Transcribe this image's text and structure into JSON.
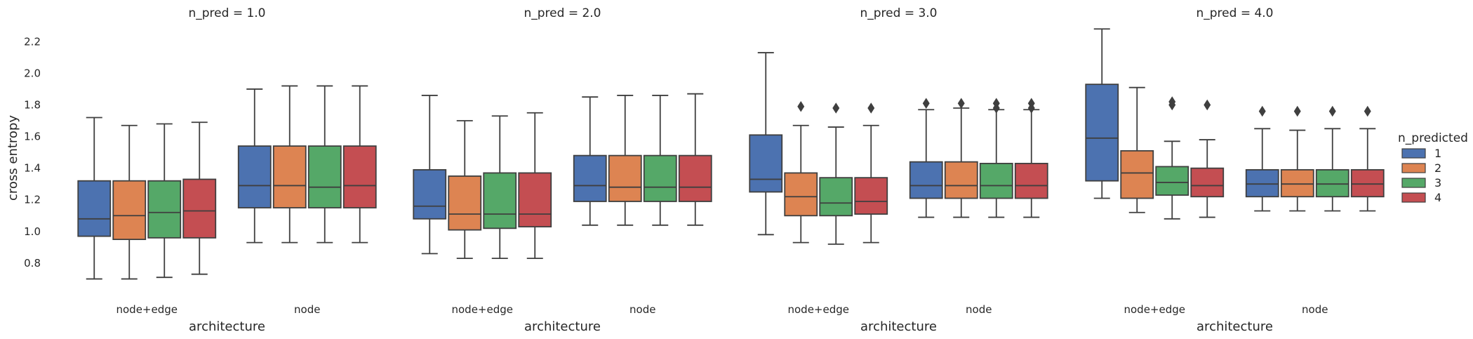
{
  "chart_data": {
    "type": "boxplot",
    "facet_label": "n_pred",
    "xlabel": "architecture",
    "ylabel": "cross entropy",
    "ylim": [
      0.6,
      2.33
    ],
    "yticks": [
      "0.8",
      "1.0",
      "1.2",
      "1.4",
      "1.6",
      "1.8",
      "2.0",
      "2.2"
    ],
    "categories": [
      "node+edge",
      "node"
    ],
    "legend": {
      "title": "n_predicted",
      "placement": "right",
      "entries": [
        {
          "label": "1",
          "color": "#4c72b0"
        },
        {
          "label": "2",
          "color": "#dd8452"
        },
        {
          "label": "3",
          "color": "#55a868"
        },
        {
          "label": "4",
          "color": "#c44e52"
        }
      ]
    },
    "panels": [
      {
        "title": "n_pred = 1.0",
        "groups": [
          {
            "category": "node+edge",
            "boxes": [
              {
                "hue": "1",
                "wmin": 0.7,
                "q1": 0.97,
                "med": 1.08,
                "q3": 1.32,
                "wmax": 1.72,
                "outliers": []
              },
              {
                "hue": "2",
                "wmin": 0.7,
                "q1": 0.95,
                "med": 1.1,
                "q3": 1.32,
                "wmax": 1.67,
                "outliers": []
              },
              {
                "hue": "3",
                "wmin": 0.71,
                "q1": 0.96,
                "med": 1.12,
                "q3": 1.32,
                "wmax": 1.68,
                "outliers": []
              },
              {
                "hue": "4",
                "wmin": 0.73,
                "q1": 0.96,
                "med": 1.13,
                "q3": 1.33,
                "wmax": 1.69,
                "outliers": []
              }
            ]
          },
          {
            "category": "node",
            "boxes": [
              {
                "hue": "1",
                "wmin": 0.93,
                "q1": 1.15,
                "med": 1.29,
                "q3": 1.54,
                "wmax": 1.9,
                "outliers": []
              },
              {
                "hue": "2",
                "wmin": 0.93,
                "q1": 1.15,
                "med": 1.29,
                "q3": 1.54,
                "wmax": 1.92,
                "outliers": []
              },
              {
                "hue": "3",
                "wmin": 0.93,
                "q1": 1.15,
                "med": 1.28,
                "q3": 1.54,
                "wmax": 1.92,
                "outliers": []
              },
              {
                "hue": "4",
                "wmin": 0.93,
                "q1": 1.15,
                "med": 1.29,
                "q3": 1.54,
                "wmax": 1.92,
                "outliers": []
              }
            ]
          }
        ]
      },
      {
        "title": "n_pred = 2.0",
        "groups": [
          {
            "category": "node+edge",
            "boxes": [
              {
                "hue": "1",
                "wmin": 0.86,
                "q1": 1.08,
                "med": 1.16,
                "q3": 1.39,
                "wmax": 1.86,
                "outliers": []
              },
              {
                "hue": "2",
                "wmin": 0.83,
                "q1": 1.01,
                "med": 1.11,
                "q3": 1.35,
                "wmax": 1.7,
                "outliers": []
              },
              {
                "hue": "3",
                "wmin": 0.83,
                "q1": 1.02,
                "med": 1.11,
                "q3": 1.37,
                "wmax": 1.73,
                "outliers": []
              },
              {
                "hue": "4",
                "wmin": 0.83,
                "q1": 1.03,
                "med": 1.11,
                "q3": 1.37,
                "wmax": 1.75,
                "outliers": []
              }
            ]
          },
          {
            "category": "node",
            "boxes": [
              {
                "hue": "1",
                "wmin": 1.04,
                "q1": 1.19,
                "med": 1.29,
                "q3": 1.48,
                "wmax": 1.85,
                "outliers": []
              },
              {
                "hue": "2",
                "wmin": 1.04,
                "q1": 1.19,
                "med": 1.28,
                "q3": 1.48,
                "wmax": 1.86,
                "outliers": []
              },
              {
                "hue": "3",
                "wmin": 1.04,
                "q1": 1.19,
                "med": 1.28,
                "q3": 1.48,
                "wmax": 1.86,
                "outliers": []
              },
              {
                "hue": "4",
                "wmin": 1.04,
                "q1": 1.19,
                "med": 1.28,
                "q3": 1.48,
                "wmax": 1.87,
                "outliers": []
              }
            ]
          }
        ]
      },
      {
        "title": "n_pred = 3.0",
        "groups": [
          {
            "category": "node+edge",
            "boxes": [
              {
                "hue": "1",
                "wmin": 0.98,
                "q1": 1.25,
                "med": 1.33,
                "q3": 1.61,
                "wmax": 2.13,
                "outliers": []
              },
              {
                "hue": "2",
                "wmin": 0.93,
                "q1": 1.1,
                "med": 1.22,
                "q3": 1.37,
                "wmax": 1.67,
                "outliers": [
                  1.79
                ]
              },
              {
                "hue": "3",
                "wmin": 0.92,
                "q1": 1.1,
                "med": 1.18,
                "q3": 1.34,
                "wmax": 1.66,
                "outliers": [
                  1.78
                ]
              },
              {
                "hue": "4",
                "wmin": 0.93,
                "q1": 1.11,
                "med": 1.19,
                "q3": 1.34,
                "wmax": 1.67,
                "outliers": [
                  1.78
                ]
              }
            ]
          },
          {
            "category": "node",
            "boxes": [
              {
                "hue": "1",
                "wmin": 1.09,
                "q1": 1.21,
                "med": 1.29,
                "q3": 1.44,
                "wmax": 1.77,
                "outliers": [
                  1.81
                ]
              },
              {
                "hue": "2",
                "wmin": 1.09,
                "q1": 1.21,
                "med": 1.29,
                "q3": 1.44,
                "wmax": 1.78,
                "outliers": [
                  1.81
                ]
              },
              {
                "hue": "3",
                "wmin": 1.09,
                "q1": 1.21,
                "med": 1.29,
                "q3": 1.43,
                "wmax": 1.77,
                "outliers": [
                  1.78,
                  1.81
                ]
              },
              {
                "hue": "4",
                "wmin": 1.09,
                "q1": 1.21,
                "med": 1.29,
                "q3": 1.43,
                "wmax": 1.77,
                "outliers": [
                  1.78,
                  1.81
                ]
              }
            ]
          }
        ]
      },
      {
        "title": "n_pred = 4.0",
        "groups": [
          {
            "category": "node+edge",
            "boxes": [
              {
                "hue": "1",
                "wmin": 1.21,
                "q1": 1.32,
                "med": 1.59,
                "q3": 1.93,
                "wmax": 2.28,
                "outliers": []
              },
              {
                "hue": "2",
                "wmin": 1.12,
                "q1": 1.21,
                "med": 1.37,
                "q3": 1.51,
                "wmax": 1.91,
                "outliers": []
              },
              {
                "hue": "3",
                "wmin": 1.08,
                "q1": 1.23,
                "med": 1.31,
                "q3": 1.41,
                "wmax": 1.57,
                "outliers": [
                  1.8,
                  1.82
                ]
              },
              {
                "hue": "4",
                "wmin": 1.09,
                "q1": 1.22,
                "med": 1.29,
                "q3": 1.4,
                "wmax": 1.58,
                "outliers": [
                  1.8
                ]
              }
            ]
          },
          {
            "category": "node",
            "boxes": [
              {
                "hue": "1",
                "wmin": 1.13,
                "q1": 1.22,
                "med": 1.3,
                "q3": 1.39,
                "wmax": 1.65,
                "outliers": [
                  1.76
                ]
              },
              {
                "hue": "2",
                "wmin": 1.13,
                "q1": 1.22,
                "med": 1.3,
                "q3": 1.39,
                "wmax": 1.64,
                "outliers": [
                  1.76
                ]
              },
              {
                "hue": "3",
                "wmin": 1.13,
                "q1": 1.22,
                "med": 1.3,
                "q3": 1.39,
                "wmax": 1.65,
                "outliers": [
                  1.76
                ]
              },
              {
                "hue": "4",
                "wmin": 1.13,
                "q1": 1.22,
                "med": 1.3,
                "q3": 1.39,
                "wmax": 1.65,
                "outliers": [
                  1.76
                ]
              }
            ]
          }
        ]
      }
    ]
  }
}
